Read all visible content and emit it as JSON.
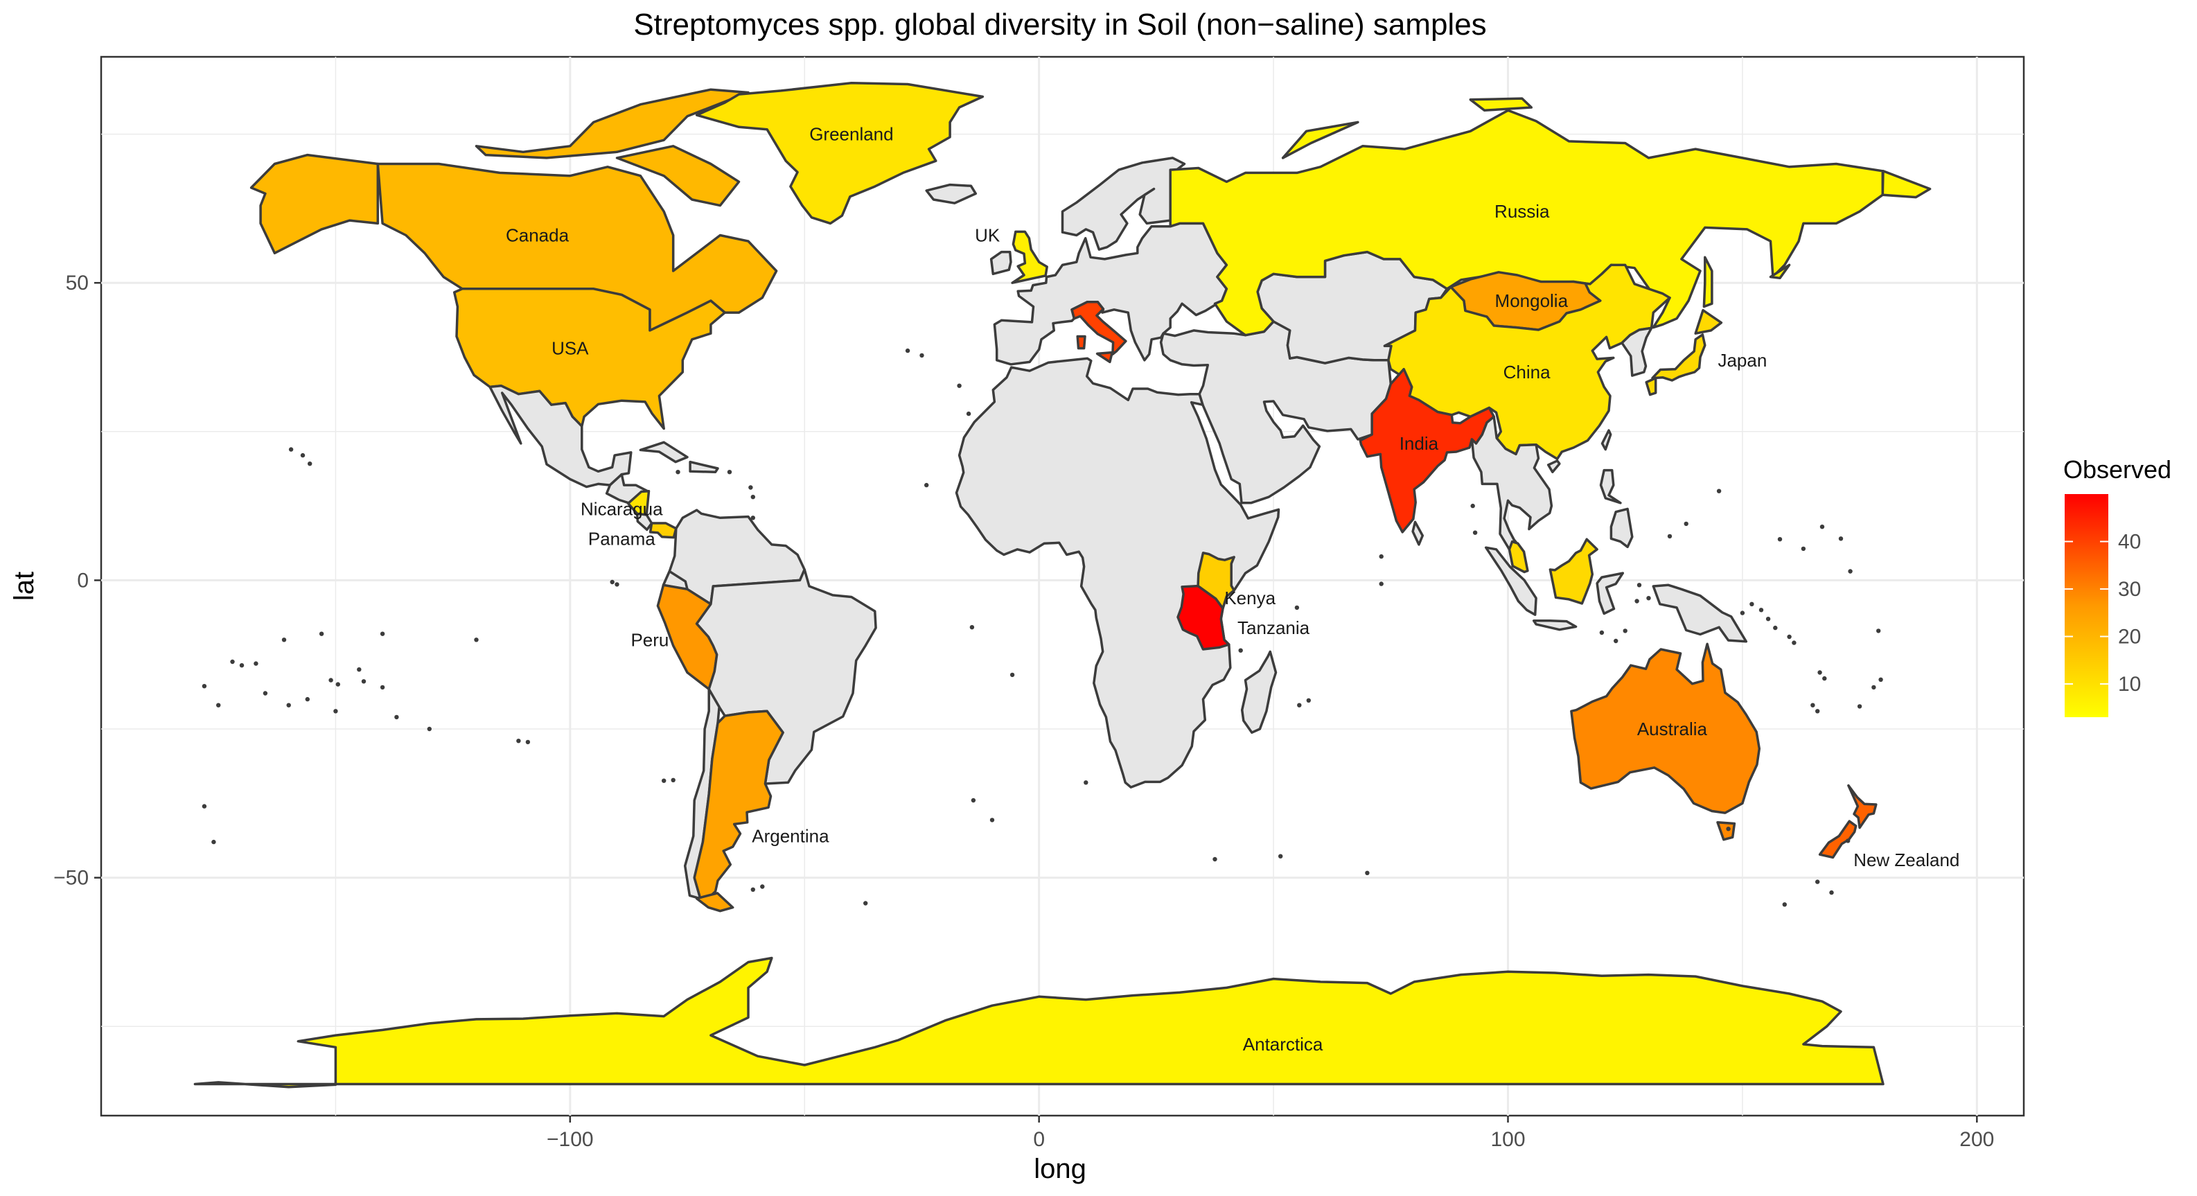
{
  "chart_data": {
    "type": "choropleth",
    "title": "Streptomyces spp. global diversity in Soil (non−saline) samples",
    "xlabel": "long",
    "ylabel": "lat",
    "xlim": [
      -200,
      210
    ],
    "ylim": [
      -90,
      88
    ],
    "x_ticks": [
      -100,
      0,
      100,
      200
    ],
    "x_tick_labels": [
      "−100",
      "0",
      "100",
      "200"
    ],
    "y_ticks": [
      50,
      0,
      -50
    ],
    "y_tick_labels": [
      "50",
      "0",
      "−50"
    ],
    "grid": true,
    "legend": {
      "title": "Observed",
      "placement": "right",
      "min": 3,
      "max": 50,
      "ticks": [
        10,
        20,
        30,
        40
      ],
      "colors": [
        "#FFFF00",
        "#FF0000"
      ]
    },
    "default_fill": "#E6E6E6",
    "countries": [
      {
        "name": "Greenland",
        "observed": 8,
        "label_lon": -40,
        "label_lat": 75
      },
      {
        "name": "Canada",
        "observed": 16,
        "label_lon": -107,
        "label_lat": 58
      },
      {
        "name": "USA",
        "observed": 15,
        "label_lon": -100,
        "label_lat": 39
      },
      {
        "name": "UK",
        "observed": 6,
        "label_lon": -11,
        "label_lat": 58
      },
      {
        "name": "Russia",
        "observed": 5,
        "label_lon": 103,
        "label_lat": 62
      },
      {
        "name": "Mongolia",
        "observed": 20,
        "label_lon": 105,
        "label_lat": 47
      },
      {
        "name": "China",
        "observed": 8,
        "label_lon": 104,
        "label_lat": 35
      },
      {
        "name": "Japan",
        "observed": 10,
        "label_lon": 150,
        "label_lat": 37
      },
      {
        "name": "India",
        "observed": 42,
        "label_lon": 81,
        "label_lat": 23
      },
      {
        "name": "Italy",
        "observed": 38,
        "label_lon": 0,
        "label_lat": 0
      },
      {
        "name": "Nicaragua",
        "observed": 8,
        "label_lon": -89,
        "label_lat": 12
      },
      {
        "name": "Panama",
        "observed": 12,
        "label_lon": -89,
        "label_lat": 7
      },
      {
        "name": "Peru",
        "observed": 22,
        "label_lon": -83,
        "label_lat": -10
      },
      {
        "name": "Argentina",
        "observed": 20,
        "label_lon": -53,
        "label_lat": -43
      },
      {
        "name": "Kenya",
        "observed": 12,
        "label_lon": 45,
        "label_lat": -3
      },
      {
        "name": "Tanzania",
        "observed": 50,
        "label_lon": 50,
        "label_lat": -8
      },
      {
        "name": "Australia",
        "observed": 25,
        "label_lon": 135,
        "label_lat": -25
      },
      {
        "name": "New Zealand",
        "observed": 32,
        "label_lon": 185,
        "label_lat": -47
      },
      {
        "name": "Antarctica",
        "observed": 5,
        "label_lon": 52,
        "label_lat": -78
      }
    ]
  }
}
